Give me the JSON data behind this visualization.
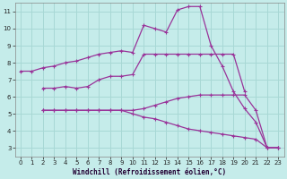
{
  "xlabel": "Windchill (Refroidissement éolien,°C)",
  "background_color": "#c5ecea",
  "grid_color": "#a8d8d5",
  "line_color": "#993399",
  "xlim": [
    -0.5,
    23.5
  ],
  "ylim": [
    2.5,
    11.5
  ],
  "xticks": [
    0,
    1,
    2,
    3,
    4,
    5,
    6,
    7,
    8,
    9,
    10,
    11,
    12,
    13,
    14,
    15,
    16,
    17,
    18,
    19,
    20,
    21,
    22,
    23
  ],
  "yticks": [
    3,
    4,
    5,
    6,
    7,
    8,
    9,
    10,
    11
  ],
  "series": [
    {
      "x": [
        0,
        1,
        2,
        3,
        4,
        5,
        6,
        7,
        8,
        9,
        10,
        11,
        12,
        13,
        14,
        15,
        16,
        17,
        18,
        19,
        20,
        21,
        22,
        23
      ],
      "y": [
        7.5,
        7.5,
        7.7,
        7.8,
        8.0,
        8.1,
        8.3,
        8.5,
        8.6,
        8.7,
        8.6,
        10.2,
        10.0,
        9.8,
        11.1,
        11.3,
        11.3,
        9.0,
        7.8,
        6.3,
        5.3,
        4.5,
        3.0,
        3.0
      ]
    },
    {
      "x": [
        2,
        3,
        4,
        5,
        6,
        7,
        8,
        9,
        10,
        11,
        12,
        13,
        14,
        15,
        16,
        17,
        18,
        19,
        20
      ],
      "y": [
        6.5,
        6.5,
        6.6,
        6.5,
        6.6,
        7.0,
        7.2,
        7.2,
        7.3,
        8.5,
        8.5,
        8.5,
        8.5,
        8.5,
        8.5,
        8.5,
        8.5,
        8.5,
        6.3
      ]
    },
    {
      "x": [
        2,
        3,
        4,
        5,
        6,
        7,
        8,
        9,
        10,
        11,
        12,
        13,
        14,
        15,
        16,
        17,
        18,
        19,
        20,
        21,
        22,
        23
      ],
      "y": [
        5.2,
        5.2,
        5.2,
        5.2,
        5.2,
        5.2,
        5.2,
        5.2,
        5.2,
        5.3,
        5.5,
        5.7,
        5.9,
        6.0,
        6.1,
        6.1,
        6.1,
        6.1,
        6.1,
        5.2,
        3.0,
        3.0
      ]
    },
    {
      "x": [
        2,
        3,
        4,
        5,
        6,
        7,
        8,
        9,
        10,
        11,
        12,
        13,
        14,
        15,
        16,
        17,
        18,
        19,
        20,
        21,
        22,
        23
      ],
      "y": [
        5.2,
        5.2,
        5.2,
        5.2,
        5.2,
        5.2,
        5.2,
        5.2,
        5.0,
        4.8,
        4.7,
        4.5,
        4.3,
        4.1,
        4.0,
        3.9,
        3.8,
        3.7,
        3.6,
        3.5,
        3.0,
        3.0
      ]
    }
  ]
}
